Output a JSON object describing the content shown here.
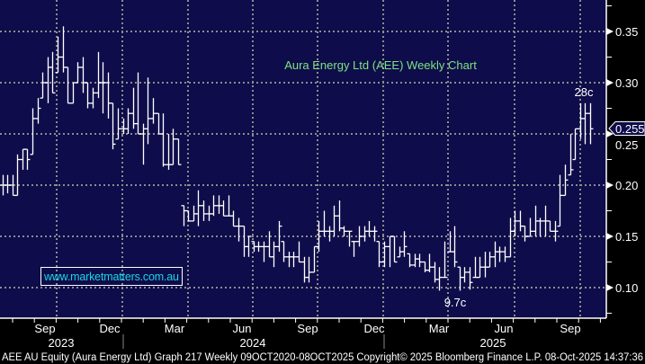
{
  "footer": "AEE AU Equity (Aura Energy Ltd) Graph 217 Weekly 09OCT2020-08OCT2025 Copyright© 2025 Bloomberg Finance L.P. 08-Oct-2025 14:37:36",
  "watermark": "www.marketmatters.com.au",
  "colors": {
    "background": "#0e0c4a",
    "bars": "#ffffff",
    "title": "#7ee37e",
    "watermark": "#19d7e6",
    "grid": "#8c8c8c"
  },
  "chart_data": {
    "type": "ohlc-bar",
    "title": "Aura Energy Ltd (AEE) Weekly Chart",
    "interval": "weekly",
    "ylim": [
      0.07,
      0.375
    ],
    "y_ticks": [
      "0.35",
      "0.30",
      "0.25",
      "0.20",
      "0.15",
      "0.10"
    ],
    "x_ticks": [
      "Sep",
      "Dec",
      "Mar",
      "Jun",
      "Sep",
      "Dec",
      "Mar",
      "Jun",
      "Sep"
    ],
    "x_years": [
      "2023",
      "2024",
      "2025"
    ],
    "grid": true,
    "last_price_label": "0.255",
    "annotations": [
      {
        "text": "28c",
        "value": 0.28
      },
      {
        "text": "9.7c",
        "value": 0.097
      }
    ],
    "bars_hlc": [
      [
        0.21,
        0.19,
        0.2
      ],
      [
        0.21,
        0.192,
        0.2
      ],
      [
        0.21,
        0.19,
        0.19
      ],
      [
        0.23,
        0.19,
        0.225
      ],
      [
        0.235,
        0.215,
        0.235
      ],
      [
        0.235,
        0.215,
        0.225
      ],
      [
        0.275,
        0.23,
        0.265
      ],
      [
        0.285,
        0.26,
        0.275
      ],
      [
        0.31,
        0.285,
        0.3
      ],
      [
        0.325,
        0.28,
        0.315
      ],
      [
        0.33,
        0.29,
        0.29
      ],
      [
        0.345,
        0.31,
        0.325
      ],
      [
        0.355,
        0.31,
        0.315
      ],
      [
        0.315,
        0.28,
        0.28
      ],
      [
        0.3,
        0.28,
        0.3
      ],
      [
        0.32,
        0.3,
        0.315
      ],
      [
        0.325,
        0.29,
        0.3
      ],
      [
        0.3,
        0.275,
        0.28
      ],
      [
        0.295,
        0.275,
        0.29
      ],
      [
        0.33,
        0.285,
        0.3
      ],
      [
        0.32,
        0.27,
        0.3
      ],
      [
        0.31,
        0.265,
        0.28
      ],
      [
        0.28,
        0.235,
        0.24
      ],
      [
        0.275,
        0.245,
        0.255
      ],
      [
        0.265,
        0.25,
        0.255
      ],
      [
        0.275,
        0.25,
        0.27
      ],
      [
        0.295,
        0.255,
        0.26
      ],
      [
        0.31,
        0.25,
        0.25
      ],
      [
        0.26,
        0.22,
        0.255
      ],
      [
        0.305,
        0.24,
        0.265
      ],
      [
        0.285,
        0.26,
        0.27
      ],
      [
        0.27,
        0.25,
        0.25
      ],
      [
        0.27,
        0.218,
        0.22
      ],
      [
        0.25,
        0.215,
        0.22
      ],
      [
        0.255,
        0.22,
        0.245
      ],
      [
        0.245,
        0.22,
        0.22
      ],
      [
        0.18,
        0.16,
        0.175
      ],
      [
        0.175,
        0.165,
        0.165
      ],
      [
        0.18,
        0.165,
        0.172
      ],
      [
        0.195,
        0.16,
        0.18
      ],
      [
        0.185,
        0.165,
        0.172
      ],
      [
        0.18,
        0.165,
        0.172
      ],
      [
        0.19,
        0.17,
        0.18
      ],
      [
        0.19,
        0.172,
        0.18
      ],
      [
        0.185,
        0.17,
        0.17
      ],
      [
        0.19,
        0.17,
        0.17
      ],
      [
        0.175,
        0.16,
        0.16
      ],
      [
        0.168,
        0.145,
        0.16
      ],
      [
        0.16,
        0.13,
        0.14
      ],
      [
        0.15,
        0.13,
        0.15
      ],
      [
        0.145,
        0.135,
        0.14
      ],
      [
        0.145,
        0.135,
        0.14
      ],
      [
        0.145,
        0.125,
        0.14
      ],
      [
        0.155,
        0.13,
        0.13
      ],
      [
        0.145,
        0.12,
        0.14
      ],
      [
        0.165,
        0.135,
        0.16
      ],
      [
        0.145,
        0.125,
        0.13
      ],
      [
        0.135,
        0.12,
        0.13
      ],
      [
        0.135,
        0.12,
        0.13
      ],
      [
        0.145,
        0.125,
        0.125
      ],
      [
        0.13,
        0.105,
        0.11
      ],
      [
        0.13,
        0.105,
        0.115
      ],
      [
        0.14,
        0.115,
        0.14
      ],
      [
        0.165,
        0.135,
        0.155
      ],
      [
        0.175,
        0.15,
        0.155
      ],
      [
        0.16,
        0.145,
        0.155
      ],
      [
        0.18,
        0.15,
        0.17
      ],
      [
        0.185,
        0.155,
        0.158
      ],
      [
        0.16,
        0.15,
        0.155
      ],
      [
        0.155,
        0.14,
        0.155
      ],
      [
        0.145,
        0.13,
        0.145
      ],
      [
        0.16,
        0.14,
        0.15
      ],
      [
        0.16,
        0.145,
        0.155
      ],
      [
        0.165,
        0.15,
        0.155
      ],
      [
        0.16,
        0.145,
        0.155
      ],
      [
        0.145,
        0.12,
        0.125
      ],
      [
        0.145,
        0.12,
        0.14
      ],
      [
        0.15,
        0.12,
        0.15
      ],
      [
        0.15,
        0.125,
        0.125
      ],
      [
        0.14,
        0.13,
        0.135
      ],
      [
        0.155,
        0.13,
        0.14
      ],
      [
        0.133,
        0.12,
        0.122
      ],
      [
        0.133,
        0.12,
        0.128
      ],
      [
        0.133,
        0.12,
        0.125
      ],
      [
        0.125,
        0.115,
        0.117
      ],
      [
        0.133,
        0.115,
        0.12
      ],
      [
        0.125,
        0.105,
        0.108
      ],
      [
        0.12,
        0.097,
        0.11
      ],
      [
        0.145,
        0.11,
        0.11
      ],
      [
        0.155,
        0.135,
        0.135
      ],
      [
        0.16,
        0.12,
        0.125
      ],
      [
        0.12,
        0.097,
        0.11
      ],
      [
        0.12,
        0.105,
        0.115
      ],
      [
        0.12,
        0.098,
        0.105
      ],
      [
        0.13,
        0.11,
        0.11
      ],
      [
        0.13,
        0.11,
        0.12
      ],
      [
        0.135,
        0.11,
        0.12
      ],
      [
        0.135,
        0.12,
        0.13
      ],
      [
        0.145,
        0.12,
        0.135
      ],
      [
        0.14,
        0.125,
        0.135
      ],
      [
        0.14,
        0.125,
        0.13
      ],
      [
        0.168,
        0.13,
        0.155
      ],
      [
        0.175,
        0.15,
        0.165
      ],
      [
        0.175,
        0.155,
        0.16
      ],
      [
        0.16,
        0.145,
        0.15
      ],
      [
        0.168,
        0.15,
        0.155
      ],
      [
        0.18,
        0.15,
        0.165
      ],
      [
        0.168,
        0.15,
        0.165
      ],
      [
        0.18,
        0.15,
        0.165
      ],
      [
        0.165,
        0.155,
        0.155
      ],
      [
        0.165,
        0.145,
        0.155
      ],
      [
        0.21,
        0.16,
        0.19
      ],
      [
        0.22,
        0.19,
        0.205
      ],
      [
        0.25,
        0.21,
        0.215
      ],
      [
        0.255,
        0.225,
        0.255
      ],
      [
        0.28,
        0.245,
        0.265
      ],
      [
        0.28,
        0.24,
        0.27
      ],
      [
        0.28,
        0.24,
        0.255
      ]
    ]
  }
}
